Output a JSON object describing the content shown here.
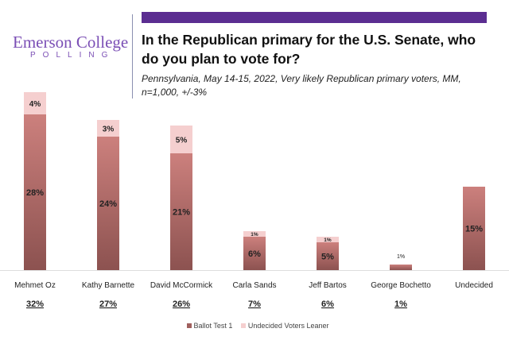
{
  "logo": {
    "line1": "Emerson College",
    "line2": "POLLING"
  },
  "title": "In the Republican primary for the U.S. Senate, who do you plan to vote for?",
  "subtitle": "Pennsylvania, May 14-15, 2022, Very likely Republican primary voters, MM, n=1,000, +/-3%",
  "colors": {
    "brand": "#5b2d91",
    "ballot": "#b06a68",
    "leaner": "#f5cfcf"
  },
  "chart_data": {
    "type": "bar",
    "stacked": true,
    "categories": [
      "Mehmet Oz",
      "Kathy Barnette",
      "David McCormick",
      "Carla Sands",
      "Jeff Bartos",
      "George Bochetto",
      "Undecided"
    ],
    "series": [
      {
        "name": "Ballot Test 1",
        "values": [
          28,
          24,
          21,
          6,
          5,
          1,
          15
        ],
        "labels": [
          "28%",
          "24%",
          "21%",
          "6%",
          "5%",
          "1%",
          "15%"
        ]
      },
      {
        "name": "Undecided Voters Leaner",
        "values": [
          4,
          3,
          5,
          1,
          1,
          0,
          0
        ],
        "labels": [
          "4%",
          "3%",
          "5%",
          "1%",
          "1%",
          "",
          ""
        ]
      }
    ],
    "totals": [
      "32%",
      "27%",
      "26%",
      "7%",
      "6%",
      "1%",
      ""
    ],
    "legend": "bottom",
    "ylim": [
      0,
      34
    ]
  }
}
